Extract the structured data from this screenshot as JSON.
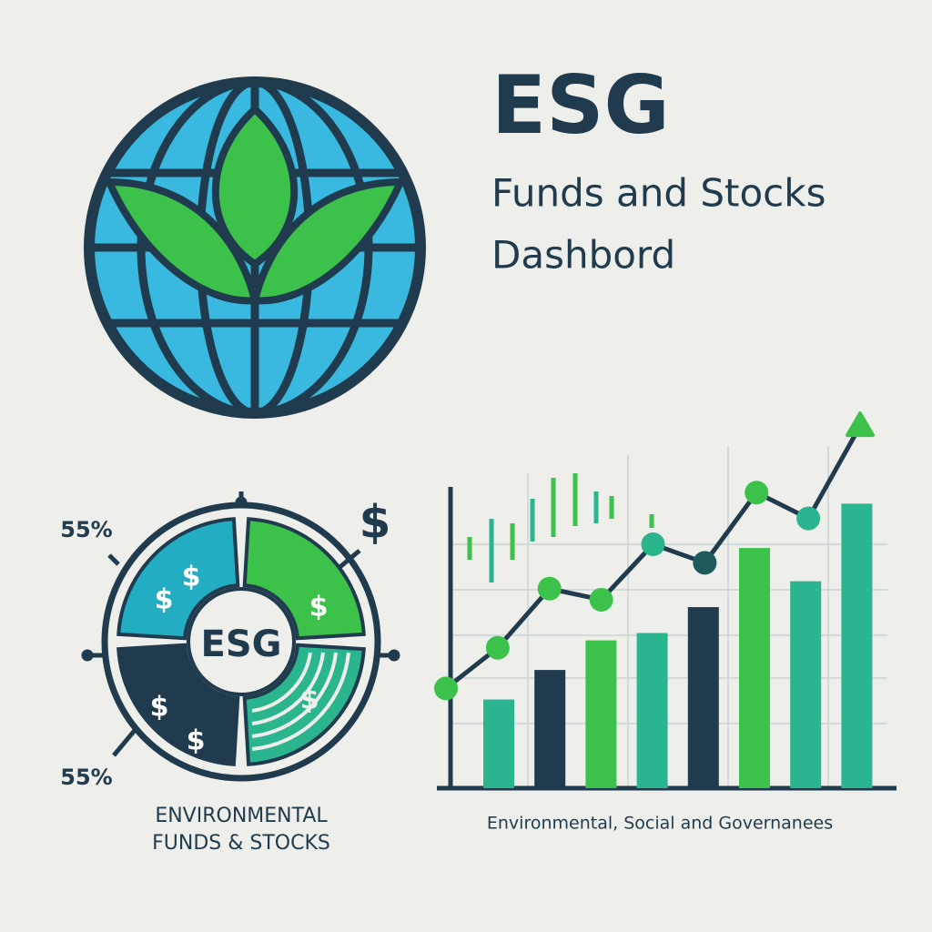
{
  "header": {
    "title": "ESG",
    "subtitle_line1": "Funds and Stocks",
    "subtitle_line2": "Dashbord"
  },
  "donut": {
    "center_label": "ESG",
    "top_percent": "55%",
    "bottom_percent": "55%",
    "outer_symbol": "$",
    "segment_symbols": [
      "$",
      "$",
      "$",
      "$",
      "$",
      "$"
    ],
    "caption_line1": "ENVIRONMENTAL",
    "caption_line2": "FUNDS &  STOCKS"
  },
  "chart_data": {
    "type": "bar",
    "caption": "Environmental, Social and Governanees",
    "ylim": [
      0,
      100
    ],
    "values": [
      24,
      32,
      40,
      42,
      49,
      65,
      56,
      77
    ],
    "colors": [
      "#2bb58e",
      "#1f3b4d",
      "#3cc24a",
      "#2bb58e",
      "#1f3b4d",
      "#3cc24a",
      "#2bb58e",
      "#2bb58e"
    ],
    "line": {
      "color": "#1f3b4d",
      "marker_colors": [
        "#3cc24a",
        "#3cc24a",
        "#3cc24a",
        "#3cc24a",
        "#2bb58e",
        "#1f5a5a",
        "#3cc24a",
        "#2bb58e",
        "#3cc24a"
      ],
      "values": [
        27,
        38,
        54,
        51,
        66,
        61,
        80,
        73,
        98
      ]
    }
  }
}
